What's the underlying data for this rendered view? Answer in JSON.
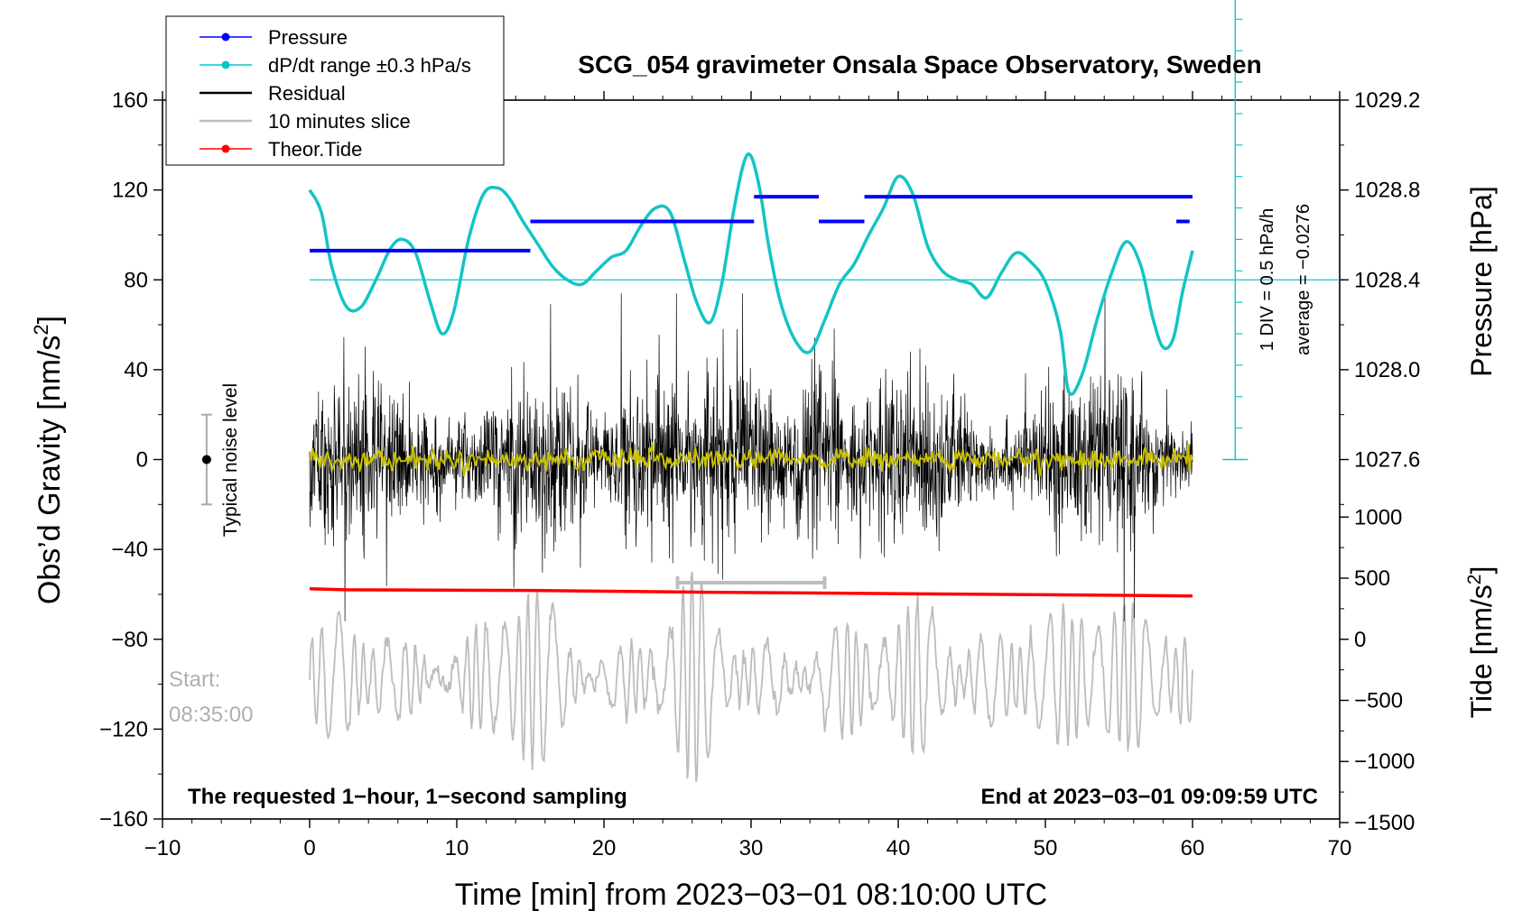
{
  "chart_data": {
    "type": "line",
    "title": "SCG_054 gravimeter Onsala Space Observatory, Sweden",
    "xlabel": "Time [min] from 2023−03−01 08:10:00 UTC",
    "ylabel_left": "Obs’d Gravity [nm/s",
    "ylabel_left_sup": "2",
    "ylabel_left_close": "]",
    "ylabel_pressure": "Pressure [hPa]",
    "ylabel_tide": "Tide [nm/s",
    "ylabel_tide_sup": "2",
    "ylabel_tide_close": "]",
    "xlim": [
      -10,
      70
    ],
    "ylim_left": [
      -160,
      160
    ],
    "x_ticks": [
      {
        "value": -10,
        "label": "−10"
      },
      {
        "value": 0,
        "label": "0"
      },
      {
        "value": 10,
        "label": "10"
      },
      {
        "value": 20,
        "label": "20"
      },
      {
        "value": 30,
        "label": "30"
      },
      {
        "value": 40,
        "label": "40"
      },
      {
        "value": 50,
        "label": "50"
      },
      {
        "value": 60,
        "label": "60"
      },
      {
        "value": 70,
        "label": "70"
      }
    ],
    "y_left_ticks": [
      {
        "value": 160,
        "label": "160"
      },
      {
        "value": 120,
        "label": "120"
      },
      {
        "value": 80,
        "label": "80"
      },
      {
        "value": 40,
        "label": "40"
      },
      {
        "value": 0,
        "label": "0"
      },
      {
        "value": -40,
        "label": "−40"
      },
      {
        "value": -80,
        "label": "−80"
      },
      {
        "value": -120,
        "label": "−120"
      },
      {
        "value": -160,
        "label": "−160"
      }
    ],
    "y_pressure_ticks": [
      {
        "value": 1029.2,
        "label": "1029.2"
      },
      {
        "value": 1028.8,
        "label": "1028.8"
      },
      {
        "value": 1028.4,
        "label": "1028.4"
      },
      {
        "value": 1028.0,
        "label": "1028.0"
      },
      {
        "value": 1027.6,
        "label": "1027.6"
      }
    ],
    "y_tide_ticks": [
      {
        "value": 1000,
        "label": "1000"
      },
      {
        "value": 500,
        "label": "500"
      },
      {
        "value": 0,
        "label": "0"
      },
      {
        "value": -500,
        "label": "−500"
      },
      {
        "value": -1000,
        "label": "−1000"
      },
      {
        "value": -1500,
        "label": "−1500"
      }
    ],
    "pressure_axis_map": {
      "ref_value": 1028.4,
      "ref_gravity": 80,
      "gravity_per_hPa": 100
    },
    "tide_axis_map": {
      "ref_value": 0,
      "ref_gravity": -80,
      "gravity_per_unit": 0.0544
    },
    "legend": {
      "placement": "top-left",
      "entries": [
        {
          "label": "Pressure",
          "color": "#0000ff",
          "marker": true
        },
        {
          "label": "dP/dt range ±0.3 hPa/s",
          "color": "#00c8c8",
          "marker": true
        },
        {
          "label": "Residual",
          "color": "#000000",
          "marker": false
        },
        {
          "label": "10 minutes slice",
          "color": "#bdbdbd",
          "marker": false
        },
        {
          "label": "Theor.Tide",
          "color": "#ff0000",
          "marker": true
        }
      ]
    },
    "series": [
      {
        "name": "Pressure",
        "color": "#0000ff",
        "unit": "hPa",
        "segments": [
          {
            "x": [
              0,
              15
            ],
            "y": 1028.53
          },
          {
            "x": [
              15,
              30.2
            ],
            "y": 1028.66
          },
          {
            "x": [
              30.2,
              34.6
            ],
            "y": 1028.77
          },
          {
            "x": [
              34.6,
              37.7
            ],
            "y": 1028.66
          },
          {
            "x": [
              37.7,
              60.0
            ],
            "y": 1028.77
          },
          {
            "x": [
              58.9,
              59.8
            ],
            "y": 1028.66
          }
        ]
      },
      {
        "name": "dP/dt range ±0.3 hPa/s",
        "color": "#14c4c4",
        "reference_line": 80,
        "x": [
          0,
          0.8,
          1.5,
          2.5,
          3.5,
          4.5,
          5.5,
          6.3,
          7.2,
          8.2,
          9.0,
          9.8,
          10.8,
          11.8,
          12.7,
          13.5,
          14.5,
          15.5,
          16.5,
          17.5,
          18.5,
          19.5,
          20.5,
          21.5,
          22.5,
          23.5,
          24.5,
          25.5,
          26.3,
          27.2,
          28.0,
          28.8,
          29.5,
          30.0,
          30.6,
          31.2,
          32.0,
          33.0,
          34.0,
          35.0,
          36.0,
          37.0,
          38.0,
          39.0,
          40.0,
          41.0,
          42.0,
          43.0,
          44.0,
          45.0,
          46.0,
          47.0,
          48.0,
          49.0,
          50.0,
          51.0,
          51.6,
          52.5,
          53.5,
          54.5,
          55.5,
          56.5,
          57.3,
          58.0,
          58.7,
          59.3,
          60.0
        ],
        "y": [
          120,
          110,
          86,
          68,
          68,
          80,
          94,
          98,
          92,
          70,
          56,
          66,
          98,
          118,
          121,
          117,
          106,
          96,
          86,
          80,
          78,
          84,
          90,
          93,
          104,
          112,
          110,
          88,
          70,
          61,
          78,
          110,
          132,
          135,
          120,
          95,
          70,
          53,
          48,
          62,
          78,
          87,
          100,
          112,
          126,
          118,
          95,
          84,
          80,
          78,
          72,
          83,
          92,
          88,
          79,
          58,
          30,
          38,
          62,
          83,
          97,
          86,
          63,
          50,
          54,
          74,
          93
        ]
      },
      {
        "name": "Residual",
        "color": "#000000",
        "description": "1-second sampled residual gravity, amplitude roughly ±40 nm/s² with spikes to about ±70 nm/s²",
        "range": [
          -72,
          74
        ]
      },
      {
        "name": "10 minutes slice",
        "color": "#bdbdbd",
        "unit": "nm/s² (tide axis)",
        "slice_range_min": [
          25,
          35
        ],
        "description": "10-minute slice stretched across the hour, drawn against the Tide axis"
      },
      {
        "name": "Theor.Tide",
        "color": "#ff0000",
        "unit": "nm/s² (tide axis)",
        "x": [
          0,
          2.5,
          15,
          27,
          37.5,
          49,
          60
        ],
        "y": [
          413,
          405,
          400,
          385,
          375,
          365,
          355
        ]
      }
    ],
    "annotations": {
      "pressure_scale": "1 DIV = 0.5 hPa/h",
      "pressure_average": "average = −0.0276",
      "noise_label": "Typical noise level",
      "noise_bar_range": [
        -20,
        20
      ],
      "noise_bar_x": -7,
      "start_label": "Start:",
      "start_time": "08:35:00",
      "bottom_left": "The requested 1−hour, 1−second sampling",
      "bottom_right": "End at 2023−03−01 09:09:59 UTC"
    }
  }
}
